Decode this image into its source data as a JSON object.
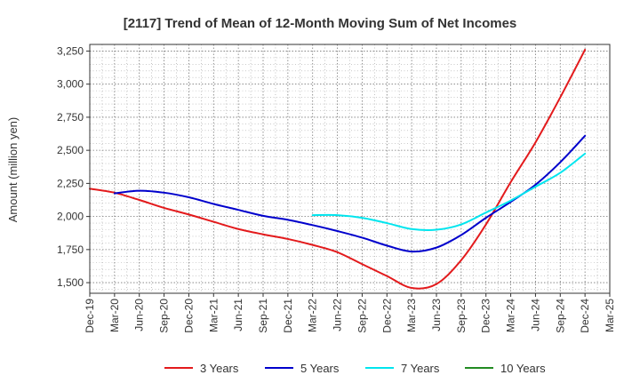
{
  "chart_data": {
    "type": "line",
    "title": "[2117]  Trend of Mean of 12-Month Moving Sum of Net Incomes",
    "xlabel": "",
    "ylabel": "Amount (million yen)",
    "ylim": [
      1420,
      3300
    ],
    "yticks": [
      1500,
      1750,
      2000,
      2250,
      2500,
      2750,
      3000,
      3250
    ],
    "ytick_labels": [
      "1,500",
      "1,750",
      "2,000",
      "2,250",
      "2,500",
      "2,750",
      "3,000",
      "3,250"
    ],
    "categories": [
      "Dec-19",
      "Mar-20",
      "Jun-20",
      "Sep-20",
      "Dec-20",
      "Mar-21",
      "Jun-21",
      "Sep-21",
      "Dec-21",
      "Mar-22",
      "Jun-22",
      "Sep-22",
      "Dec-22",
      "Mar-23",
      "Jun-23",
      "Sep-23",
      "Dec-23",
      "Mar-24",
      "Jun-24",
      "Sep-24",
      "Dec-24",
      "Mar-25"
    ],
    "grid": true,
    "legend_position": "bottom",
    "series": [
      {
        "name": "3 Years",
        "color": "#e31a1c",
        "values": [
          2210,
          2180,
          2125,
          2065,
          2015,
          1960,
          1905,
          1865,
          1830,
          1785,
          1730,
          1640,
          1550,
          1460,
          1490,
          1670,
          1940,
          2260,
          2560,
          2900,
          3260,
          null
        ]
      },
      {
        "name": "5 Years",
        "color": "#0000cc",
        "values": [
          null,
          2175,
          2195,
          2180,
          2145,
          2095,
          2050,
          2005,
          1975,
          1935,
          1890,
          1840,
          1780,
          1735,
          1765,
          1860,
          1990,
          2110,
          2240,
          2410,
          2610,
          null
        ]
      },
      {
        "name": "7 Years",
        "color": "#00e5ee",
        "values": [
          null,
          null,
          null,
          null,
          null,
          null,
          null,
          null,
          null,
          2010,
          2010,
          1990,
          1950,
          1905,
          1900,
          1940,
          2030,
          2120,
          2225,
          2330,
          2475,
          null
        ]
      },
      {
        "name": "10 Years",
        "color": "#228b22",
        "values": [
          null,
          null,
          null,
          null,
          null,
          null,
          null,
          null,
          null,
          null,
          null,
          null,
          null,
          null,
          null,
          null,
          null,
          null,
          null,
          null,
          null,
          null
        ]
      }
    ]
  }
}
